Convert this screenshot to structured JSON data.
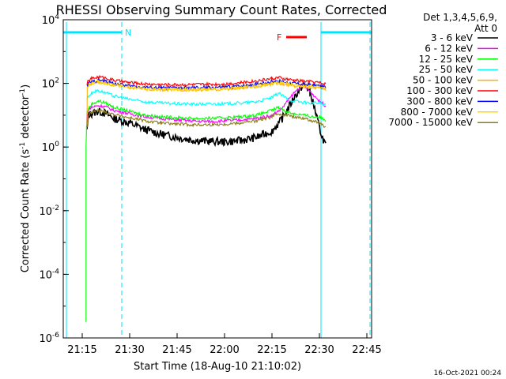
{
  "chart_data": {
    "type": "line",
    "title": "RHESSI Observing Summary Count Rates, Corrected",
    "xlabel": "Start Time (18-Aug-10 21:10:02)",
    "ylabel_main": "Corrected Count Rate (s",
    "ylabel_sup1": "-1",
    "ylabel_mid": " detector",
    "ylabel_sup2": "-1",
    "ylabel_end": ")",
    "x_unit": "minutes after 21:10:02",
    "xlim": [
      -1.0,
      96.5
    ],
    "ylim_log10": [
      -6,
      4
    ],
    "y_scale": "log",
    "x_ticks": [
      {
        "label": "21:15",
        "min": 5
      },
      {
        "label": "21:30",
        "min": 20
      },
      {
        "label": "21:45",
        "min": 35
      },
      {
        "label": "22:00",
        "min": 50
      },
      {
        "label": "22:15",
        "min": 65
      },
      {
        "label": "22:30",
        "min": 80
      },
      {
        "label": "22:45",
        "min": 95
      }
    ],
    "y_ticks": [
      {
        "base": "10",
        "exp": "4",
        "log": 4
      },
      {
        "base": "10",
        "exp": "2",
        "log": 2
      },
      {
        "base": "10",
        "exp": "0",
        "log": 0
      },
      {
        "base": "10",
        "exp": "-2",
        "log": -2
      },
      {
        "base": "10",
        "exp": "-4",
        "log": -4
      },
      {
        "base": "10",
        "exp": "-6",
        "log": -6
      }
    ],
    "legend_title_1": "Det 1,3,4,5,6,9,",
    "legend_title_2": "Att 0",
    "legend_placement": "right",
    "series": [
      {
        "name": "3 - 6 keV",
        "color": "#000000",
        "points": [
          [
            6.5,
            0.5
          ],
          [
            7,
            1.0
          ],
          [
            8,
            1.05
          ],
          [
            10,
            1.12
          ],
          [
            12,
            1.08
          ],
          [
            15,
            0.9
          ],
          [
            20,
            0.75
          ],
          [
            25,
            0.55
          ],
          [
            30,
            0.4
          ],
          [
            35,
            0.3
          ],
          [
            40,
            0.22
          ],
          [
            45,
            0.18
          ],
          [
            50,
            0.16
          ],
          [
            55,
            0.2
          ],
          [
            60,
            0.3
          ],
          [
            65,
            0.5
          ],
          [
            68,
            0.85
          ],
          [
            70,
            1.2
          ],
          [
            72,
            1.55
          ],
          [
            74,
            1.85
          ],
          [
            75,
            1.95
          ],
          [
            76,
            1.9
          ],
          [
            77,
            1.7
          ],
          [
            78,
            1.4
          ],
          [
            79,
            1.0
          ],
          [
            80,
            0.6
          ],
          [
            81,
            0.3
          ],
          [
            82,
            0.05
          ]
        ]
      },
      {
        "name": "6 - 12 keV",
        "color": "#ff00ff",
        "points": [
          [
            6.5,
            0.8
          ],
          [
            7,
            1.2
          ],
          [
            8,
            1.25
          ],
          [
            10,
            1.3
          ],
          [
            12,
            1.28
          ],
          [
            15,
            1.15
          ],
          [
            20,
            1.05
          ],
          [
            25,
            0.95
          ],
          [
            30,
            0.9
          ],
          [
            35,
            0.85
          ],
          [
            40,
            0.82
          ],
          [
            45,
            0.8
          ],
          [
            50,
            0.82
          ],
          [
            55,
            0.85
          ],
          [
            60,
            0.9
          ],
          [
            65,
            1.0
          ],
          [
            68,
            1.2
          ],
          [
            70,
            1.45
          ],
          [
            72,
            1.7
          ],
          [
            74,
            1.9
          ],
          [
            75,
            1.95
          ],
          [
            76,
            1.85
          ],
          [
            78,
            1.65
          ],
          [
            80,
            1.45
          ],
          [
            82,
            1.3
          ]
        ]
      },
      {
        "name": "12 - 25 keV",
        "color": "#00ff00",
        "points": [
          [
            6.2,
            -5.5
          ],
          [
            6.2,
            0.0
          ],
          [
            6.5,
            1.1
          ],
          [
            7,
            1.2
          ],
          [
            8,
            1.35
          ],
          [
            10,
            1.45
          ],
          [
            12,
            1.4
          ],
          [
            15,
            1.25
          ],
          [
            20,
            1.12
          ],
          [
            25,
            1.0
          ],
          [
            30,
            0.95
          ],
          [
            35,
            0.92
          ],
          [
            40,
            0.9
          ],
          [
            45,
            0.9
          ],
          [
            50,
            0.92
          ],
          [
            55,
            0.95
          ],
          [
            60,
            1.0
          ],
          [
            65,
            1.15
          ],
          [
            67,
            1.25
          ],
          [
            70,
            1.1
          ],
          [
            72,
            1.05
          ],
          [
            75,
            1.0
          ],
          [
            78,
            0.95
          ],
          [
            80,
            0.95
          ],
          [
            82,
            0.85
          ]
        ]
      },
      {
        "name": "25 - 50 keV",
        "color": "#00ffff",
        "points": [
          [
            6.5,
            1.5
          ],
          [
            7,
            1.6
          ],
          [
            8,
            1.7
          ],
          [
            10,
            1.78
          ],
          [
            12,
            1.72
          ],
          [
            15,
            1.6
          ],
          [
            20,
            1.5
          ],
          [
            25,
            1.42
          ],
          [
            30,
            1.38
          ],
          [
            35,
            1.36
          ],
          [
            40,
            1.35
          ],
          [
            45,
            1.35
          ],
          [
            50,
            1.36
          ],
          [
            55,
            1.38
          ],
          [
            60,
            1.42
          ],
          [
            65,
            1.55
          ],
          [
            67,
            1.7
          ],
          [
            70,
            1.5
          ],
          [
            72,
            1.45
          ],
          [
            75,
            1.4
          ],
          [
            78,
            1.38
          ],
          [
            80,
            1.38
          ],
          [
            82,
            1.3
          ]
        ]
      },
      {
        "name": "50 - 100 keV",
        "color": "#ffb000",
        "points": [
          [
            6.5,
            0.7
          ],
          [
            6.6,
            1.9
          ],
          [
            7,
            1.93
          ],
          [
            8,
            2.0
          ],
          [
            10,
            2.05
          ],
          [
            12,
            2.02
          ],
          [
            15,
            1.95
          ],
          [
            20,
            1.88
          ],
          [
            25,
            1.82
          ],
          [
            30,
            1.8
          ],
          [
            35,
            1.8
          ],
          [
            40,
            1.8
          ],
          [
            45,
            1.8
          ],
          [
            50,
            1.82
          ],
          [
            55,
            1.85
          ],
          [
            60,
            1.9
          ],
          [
            65,
            1.98
          ],
          [
            67,
            2.02
          ],
          [
            70,
            1.95
          ],
          [
            72,
            1.92
          ],
          [
            75,
            1.9
          ],
          [
            78,
            1.88
          ],
          [
            80,
            1.86
          ],
          [
            82,
            1.82
          ]
        ]
      },
      {
        "name": "100 - 300 keV",
        "color": "#ff0000",
        "points": [
          [
            6.5,
            2.0
          ],
          [
            7,
            2.08
          ],
          [
            8,
            2.15
          ],
          [
            10,
            2.2
          ],
          [
            12,
            2.18
          ],
          [
            15,
            2.1
          ],
          [
            20,
            2.02
          ],
          [
            25,
            1.98
          ],
          [
            30,
            1.96
          ],
          [
            35,
            1.96
          ],
          [
            40,
            1.96
          ],
          [
            45,
            1.97
          ],
          [
            50,
            1.98
          ],
          [
            55,
            2.02
          ],
          [
            60,
            2.08
          ],
          [
            65,
            2.15
          ],
          [
            67,
            2.18
          ],
          [
            70,
            2.12
          ],
          [
            72,
            2.1
          ],
          [
            75,
            2.07
          ],
          [
            78,
            2.05
          ],
          [
            80,
            2.02
          ],
          [
            82,
            1.98
          ]
        ]
      },
      {
        "name": "300 - 800 keV",
        "color": "#0000ff",
        "points": [
          [
            6.5,
            1.92
          ],
          [
            7,
            2.0
          ],
          [
            8,
            2.05
          ],
          [
            10,
            2.1
          ],
          [
            12,
            2.08
          ],
          [
            15,
            2.0
          ],
          [
            20,
            1.92
          ],
          [
            25,
            1.88
          ],
          [
            30,
            1.86
          ],
          [
            35,
            1.86
          ],
          [
            40,
            1.86
          ],
          [
            45,
            1.87
          ],
          [
            50,
            1.88
          ],
          [
            55,
            1.92
          ],
          [
            60,
            1.98
          ],
          [
            65,
            2.05
          ],
          [
            67,
            2.08
          ],
          [
            70,
            2.02
          ],
          [
            72,
            2.0
          ],
          [
            75,
            1.97
          ],
          [
            78,
            1.95
          ],
          [
            80,
            1.92
          ],
          [
            82,
            1.88
          ]
        ]
      },
      {
        "name": "800 - 7000 keV",
        "color": "#ffd700",
        "points": [
          [
            6.5,
            1.85
          ],
          [
            7,
            1.95
          ],
          [
            8,
            2.0
          ],
          [
            10,
            2.05
          ],
          [
            12,
            2.02
          ],
          [
            15,
            1.95
          ],
          [
            20,
            1.88
          ],
          [
            25,
            1.83
          ],
          [
            30,
            1.81
          ],
          [
            35,
            1.81
          ],
          [
            40,
            1.81
          ],
          [
            45,
            1.82
          ],
          [
            50,
            1.83
          ],
          [
            55,
            1.87
          ],
          [
            60,
            1.92
          ],
          [
            65,
            2.0
          ],
          [
            67,
            2.03
          ],
          [
            70,
            1.97
          ],
          [
            72,
            1.95
          ],
          [
            75,
            1.92
          ],
          [
            78,
            1.9
          ],
          [
            80,
            1.87
          ],
          [
            82,
            1.83
          ]
        ]
      },
      {
        "name": "7000 - 15000 keV",
        "color": "#8b7d1a",
        "points": [
          [
            6.5,
            0.6
          ],
          [
            7,
            0.98
          ],
          [
            8,
            1.08
          ],
          [
            10,
            1.15
          ],
          [
            12,
            1.12
          ],
          [
            15,
            1.02
          ],
          [
            20,
            0.92
          ],
          [
            25,
            0.82
          ],
          [
            30,
            0.75
          ],
          [
            35,
            0.72
          ],
          [
            40,
            0.7
          ],
          [
            45,
            0.7
          ],
          [
            50,
            0.72
          ],
          [
            55,
            0.76
          ],
          [
            60,
            0.82
          ],
          [
            65,
            0.95
          ],
          [
            67,
            1.05
          ],
          [
            70,
            1.0
          ],
          [
            72,
            0.95
          ],
          [
            75,
            0.9
          ],
          [
            78,
            0.82
          ],
          [
            80,
            0.75
          ],
          [
            82,
            0.6
          ]
        ]
      }
    ],
    "night_bars": [
      {
        "label": "N",
        "x_start": -1.0,
        "x_end": 17.5
      },
      {
        "label": "",
        "x_start": 80.5,
        "x_end": 96.5
      }
    ],
    "night_boundaries": [
      0.0,
      17.5,
      80.5,
      96.0
    ],
    "flare_bar": {
      "label": "F",
      "x_start": 69.5,
      "x_end": 76.0
    },
    "timestamp": "16-Oct-2021 00:24"
  }
}
